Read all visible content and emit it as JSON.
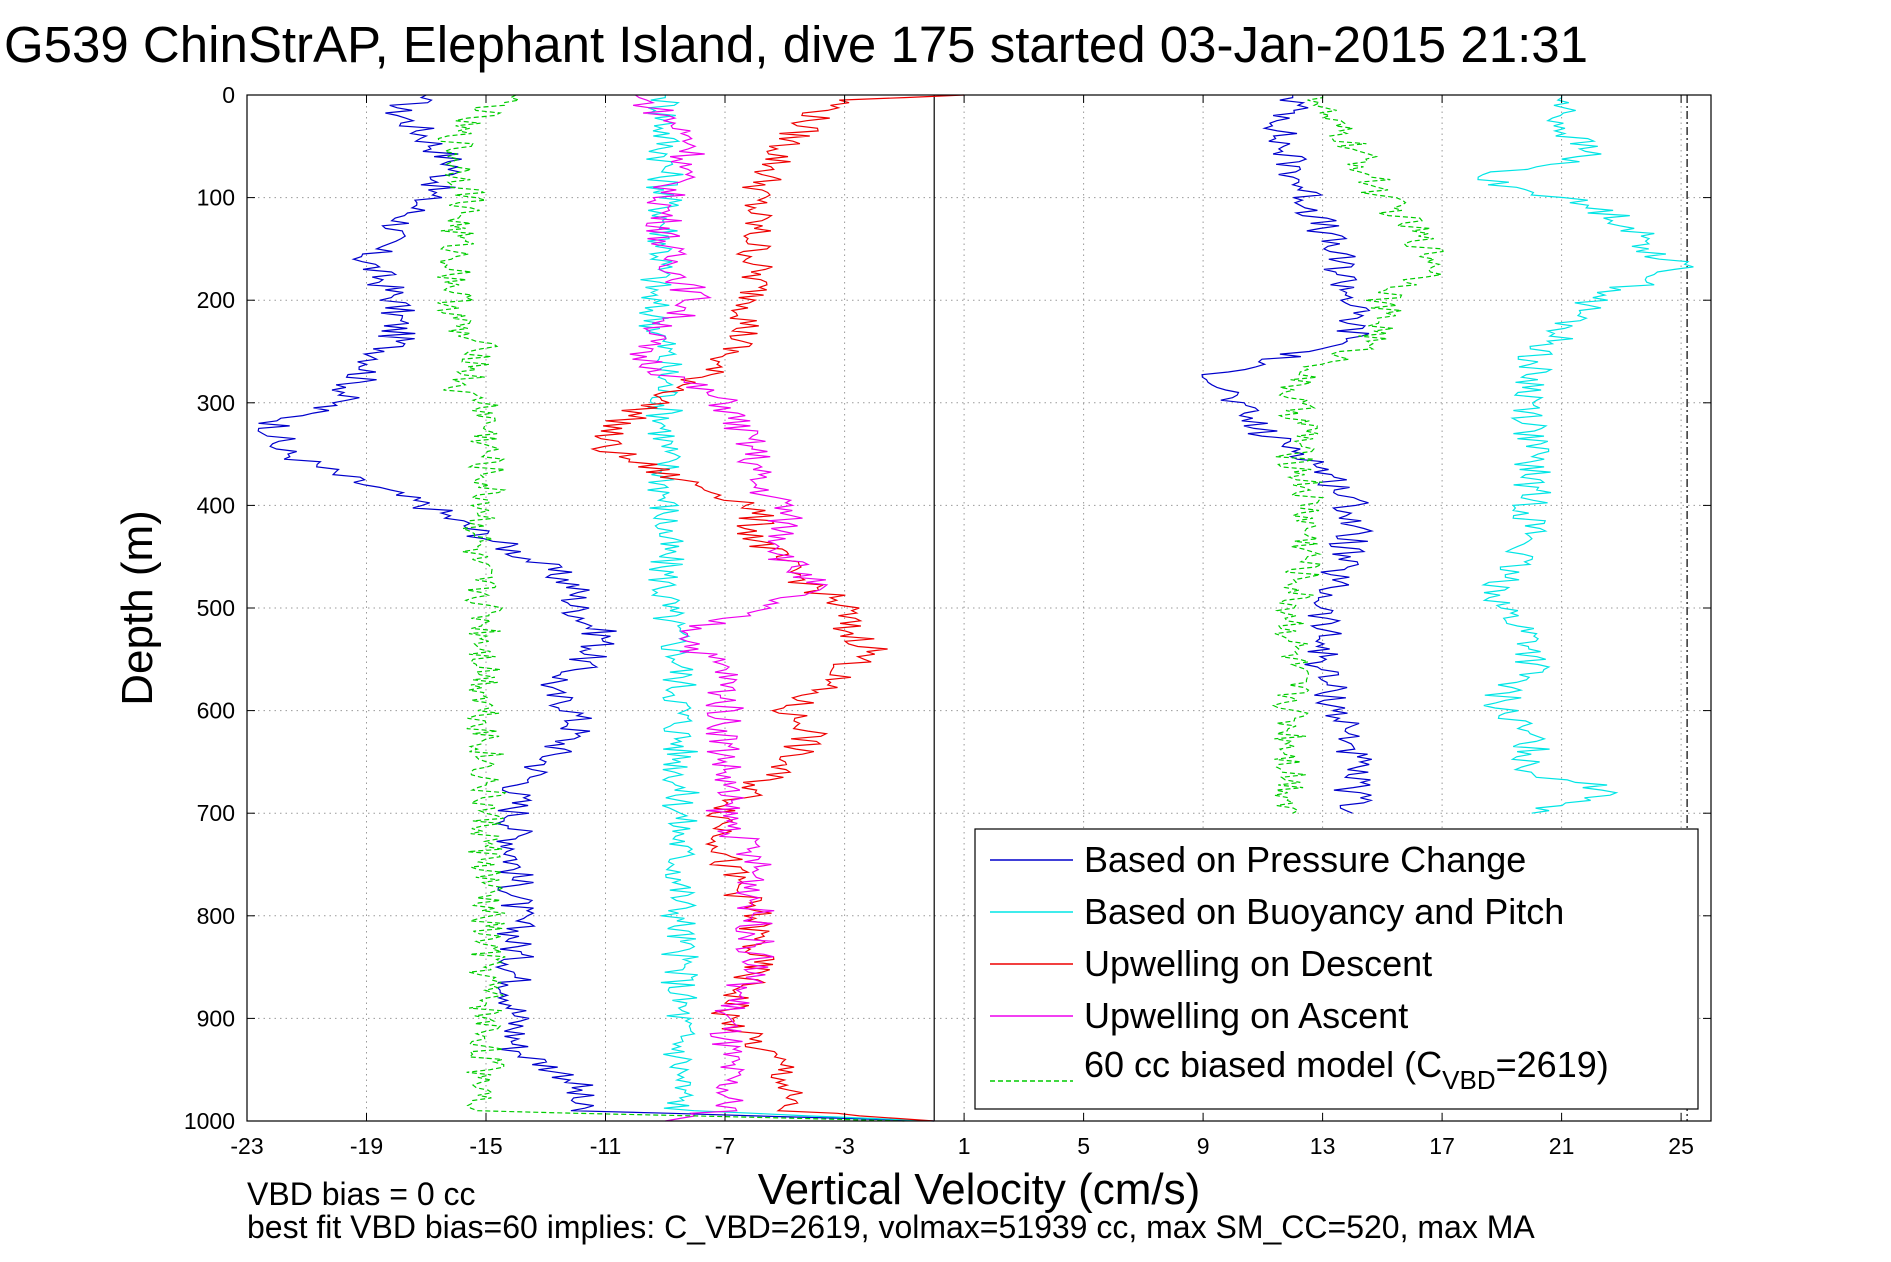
{
  "chart_data": {
    "type": "line",
    "title": "G539 ChinStrAP, Elephant Island, dive 175 started 03-Jan-2015 21:31",
    "xlabel": "Vertical Velocity (cm/s)",
    "ylabel": "Depth (m)",
    "xlim": [
      -23,
      26
    ],
    "ylim": [
      0,
      1000
    ],
    "y_reversed": true,
    "grid": true,
    "legend_position": "bottom-right",
    "x_ticks": [
      "-23",
      "-19",
      "-15",
      "-11",
      "-7",
      "-3",
      "1",
      "5",
      "9",
      "13",
      "17",
      "21",
      "25"
    ],
    "x_tick_values": [
      -23,
      -19,
      -15,
      -11,
      -7,
      -3,
      1,
      5,
      9,
      13,
      17,
      21,
      25
    ],
    "y_ticks": [
      "0",
      "100",
      "200",
      "300",
      "400",
      "500",
      "600",
      "700",
      "800",
      "900",
      "1000"
    ],
    "y_tick_values": [
      0,
      100,
      200,
      300,
      400,
      500,
      600,
      700,
      800,
      900,
      1000
    ],
    "reference_lines": [
      {
        "x": 0,
        "color": "#000000",
        "style": "solid"
      },
      {
        "x": 25.2,
        "color": "#000000",
        "style": "dashdot"
      }
    ],
    "annotations": {
      "bias_line": "VBD bias = 0 cc",
      "fit_line": "best fit VBD bias=60 implies: C_VBD=2619, volmax=51939 cc, max SM_CC=520, max MA"
    },
    "series": [
      {
        "name": "Based on Pressure Change",
        "color": "#0000cc",
        "dashed": false,
        "segments": [
          {
            "depth": [
              0,
              15,
              40,
              70,
              100,
              130,
              160,
              200,
              240,
              270,
              300,
              320,
              345,
              370,
              400,
              430,
              460,
              480,
              500,
              530,
              560,
              580,
              600,
              620,
              650,
              680,
              700,
              750,
              800,
              850,
              900,
              930,
              960,
              990,
              1000
            ],
            "velocity": [
              -17,
              -18,
              -17,
              -16,
              -17,
              -18,
              -19,
              -18,
              -18,
              -19,
              -20,
              -22,
              -22,
              -20,
              -17,
              -15,
              -13,
              -12,
              -12,
              -11,
              -12,
              -13,
              -12,
              -12,
              -13,
              -14,
              -14,
              -14,
              -14,
              -14,
              -14,
              -14,
              -12,
              -12,
              0
            ]
          },
          {
            "depth": [
              0,
              15,
              40,
              70,
              100,
              130,
              160,
              200,
              240,
              270,
              300,
              330,
              350,
              380,
              400,
              430,
              460,
              500,
              530,
              560,
              600,
              630,
              660,
              680,
              700
            ],
            "velocity": [
              12,
              12,
              11.5,
              12,
              12.5,
              13,
              13.5,
              14,
              14,
              9.5,
              10,
              11,
              12.5,
              13.5,
              14,
              14,
              13.5,
              13,
              13,
              13,
              13.5,
              14,
              14,
              14,
              14
            ]
          }
        ]
      },
      {
        "name": "Based on Buoyancy and Pitch",
        "color": "#00e5e5",
        "dashed": false,
        "segments": [
          {
            "depth": [
              0,
              50,
              100,
              150,
              200,
              250,
              300,
              350,
              400,
              450,
              500,
              550,
              600,
              650,
              700,
              750,
              800,
              850,
              900,
              950,
              990,
              1000
            ],
            "velocity": [
              -9,
              -9,
              -9,
              -9,
              -9.5,
              -9,
              -9,
              -9,
              -9,
              -9,
              -9,
              -8.5,
              -8.5,
              -8.5,
              -8.5,
              -8.5,
              -8.5,
              -8.5,
              -8.5,
              -8.5,
              -8.5,
              0
            ]
          },
          {
            "depth": [
              0,
              30,
              60,
              80,
              100,
              120,
              150,
              170,
              200,
              230,
              260,
              300,
              330,
              360,
              400,
              430,
              470,
              500,
              530,
              560,
              580,
              600,
              630,
              660,
              680,
              700
            ],
            "velocity": [
              21,
              21,
              22,
              18,
              21,
              23,
              24,
              25,
              22,
              21,
              20,
              20,
              20,
              20,
              20,
              20,
              19,
              19,
              20,
              20,
              19,
              19,
              20,
              20,
              23,
              20
            ]
          }
        ]
      },
      {
        "name": "Upwelling on Descent",
        "color": "#ee0000",
        "dashed": false,
        "segments": [
          {
            "depth": [
              0,
              5,
              20,
              50,
              100,
              150,
              200,
              240,
              280,
              310,
              330,
              345,
              370,
              400,
              430,
              460,
              480,
              500,
              520,
              540,
              560,
              580,
              600,
              620,
              650,
              700,
              750,
              800,
              850,
              900,
              950,
              990,
              1000
            ],
            "velocity": [
              1,
              -3,
              -4,
              -5,
              -6,
              -6,
              -6,
              -6.5,
              -8,
              -10,
              -11,
              -11,
              -9,
              -6,
              -6,
              -5,
              -4,
              -3,
              -3,
              -2,
              -3,
              -4,
              -5,
              -4,
              -5,
              -7,
              -7,
              -6,
              -6,
              -7,
              -5,
              -5,
              0
            ]
          }
        ]
      },
      {
        "name": "Upwelling on Ascent",
        "color": "#ee00ee",
        "dashed": false,
        "segments": [
          {
            "depth": [
              0,
              20,
              50,
              100,
              150,
              200,
              250,
              270,
              300,
              350,
              380,
              400,
              450,
              480,
              500,
              520,
              540,
              560,
              600,
              650,
              700,
              750,
              800,
              850,
              900,
              950,
              990,
              1000
            ],
            "velocity": [
              -10,
              -9,
              -8,
              -9,
              -9,
              -8,
              -10,
              -9,
              -7,
              -6,
              -6,
              -5,
              -5,
              -4,
              -6,
              -8,
              -8,
              -7,
              -7,
              -7,
              -7,
              -6,
              -6,
              -6,
              -7,
              -7,
              -7,
              -9
            ]
          }
        ]
      },
      {
        "name": "60 cc biased model (C",
        "name_sub": "VBD",
        "name_tail": "=2619)",
        "color": "#00cc00",
        "dashed": true,
        "segments": [
          {
            "depth": [
              0,
              30,
              60,
              100,
              130,
              160,
              200,
              230,
              250,
              290,
              300,
              350,
              400,
              450,
              500,
              550,
              600,
              650,
              700,
              750,
              800,
              850,
              900,
              950,
              990,
              1000
            ],
            "velocity": [
              -14,
              -16,
              -16,
              -15.5,
              -16,
              -16,
              -16,
              -16,
              -15,
              -16,
              -15,
              -15,
              -15,
              -15.5,
              -15,
              -15,
              -15,
              -15,
              -15,
              -15,
              -15,
              -15,
              -15,
              -15,
              -15,
              -1
            ]
          },
          {
            "depth": [
              0,
              20,
              50,
              100,
              130,
              150,
              170,
              200,
              230,
              250,
              280,
              300,
              330,
              350,
              380,
              400,
              450,
              500,
              530,
              560,
              600,
              650,
              700
            ],
            "velocity": [
              13,
              13,
              14,
              15,
              16,
              16.5,
              17,
              15,
              15,
              14,
              12,
              12,
              12.5,
              12,
              12.5,
              12.5,
              12.5,
              12,
              12,
              12,
              12,
              12,
              12
            ]
          }
        ]
      }
    ]
  }
}
